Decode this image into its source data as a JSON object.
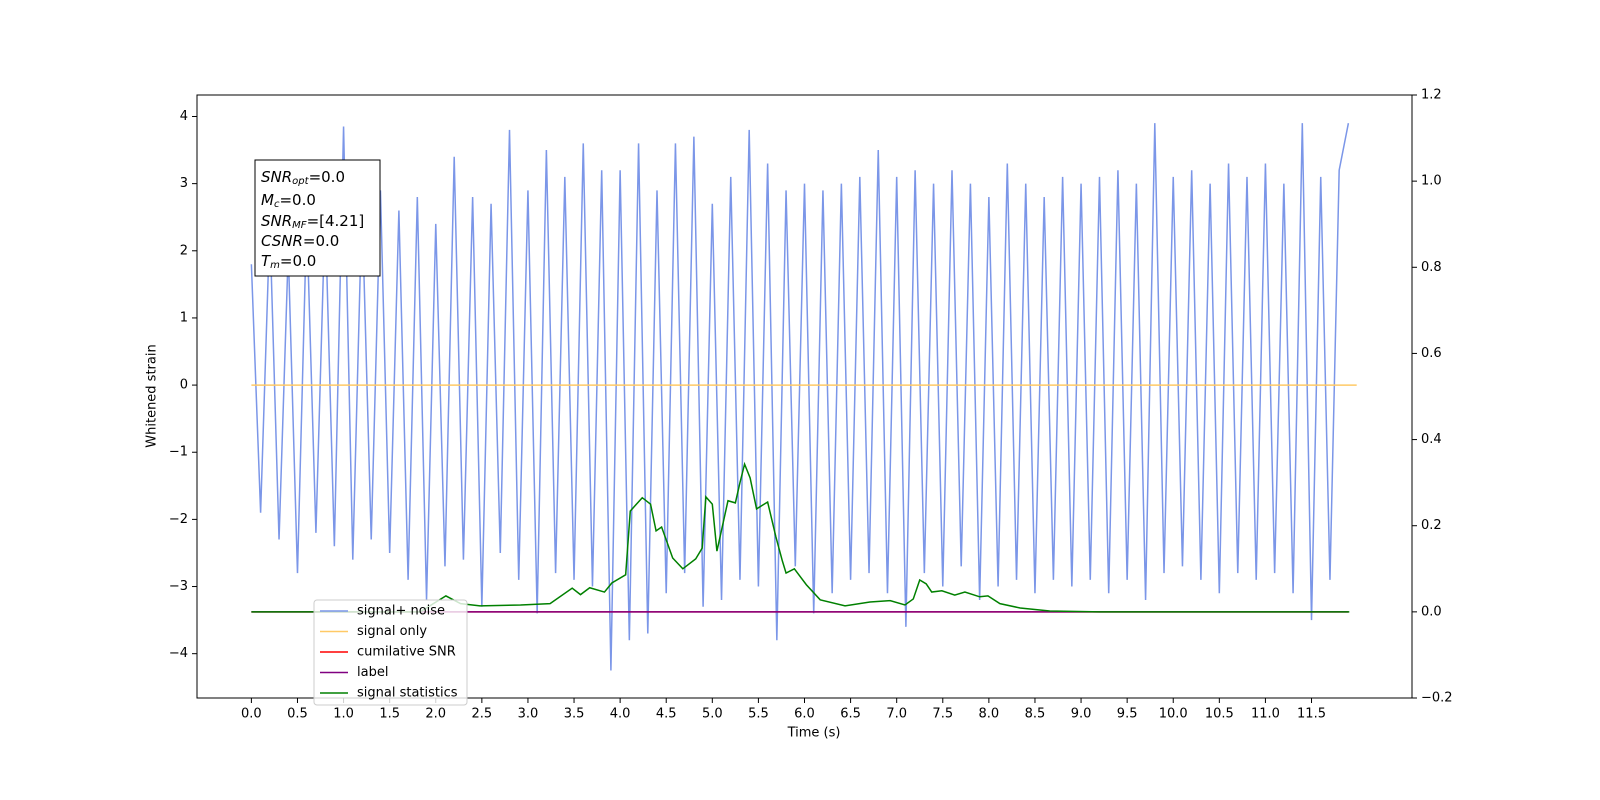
{
  "chart_data": {
    "type": "line",
    "xlabel": "Time (s)",
    "ylabel": "Whitened strain",
    "xlim": [
      -0.59,
      12.59
    ],
    "ylim": [
      -4.66,
      4.32
    ],
    "y2lim": [
      -0.2,
      1.2
    ],
    "xticks": [
      {
        "value": 0,
        "label": "0.0"
      },
      0.5,
      {
        "value": 1,
        "label": "1.0"
      },
      1.5,
      {
        "value": 2,
        "label": "2.0"
      },
      2.5,
      {
        "value": 3,
        "label": "3.0"
      },
      3.5,
      {
        "value": 4,
        "label": "4.0"
      },
      4.5,
      {
        "value": 5,
        "label": "5.0"
      },
      5.5,
      {
        "value": 6,
        "label": "6.0"
      },
      6.5,
      {
        "value": 7,
        "label": "7.0"
      },
      7.5,
      {
        "value": 8,
        "label": "8.0"
      },
      8.5,
      {
        "value": 9,
        "label": "9.0"
      },
      9.5,
      {
        "value": 10,
        "label": "10.0"
      },
      10.5,
      {
        "value": 11,
        "label": "11.0"
      },
      11.5
    ],
    "yticks": [
      {
        "value": -4,
        "label": "−4"
      },
      {
        "value": -3,
        "label": "−3"
      },
      {
        "value": -2,
        "label": "−2"
      },
      {
        "value": -1,
        "label": "−1"
      },
      0,
      1,
      2,
      3,
      4
    ],
    "y2ticks": [
      {
        "value": -0.2,
        "label": "−0.2"
      },
      {
        "value": 0,
        "label": "0.0"
      },
      0.2,
      0.4,
      0.6,
      0.8,
      {
        "value": 1,
        "label": "1.0"
      },
      1.2
    ],
    "annotations": [
      {
        "main": "SNR",
        "sub": "opt",
        "rest": "=0.0"
      },
      {
        "main": "M",
        "sub": "c",
        "rest": "=0.0"
      },
      {
        "main": "SNR",
        "sub": "MF",
        "rest": "=[4.21]"
      },
      {
        "main": "CSNR",
        "sub": null,
        "rest": "=0.0"
      },
      {
        "main": "T",
        "sub": "m",
        "rest": "=0.0"
      }
    ],
    "series": [
      {
        "name": "signal+ noise",
        "color": "#7b96e8",
        "axis": "y",
        "x": [
          0,
          0.1,
          0.2,
          0.3,
          0.4,
          0.5,
          0.6,
          0.7,
          0.8,
          0.9,
          1,
          1.1,
          1.2,
          1.3,
          1.4,
          1.5,
          1.6,
          1.7,
          1.8,
          1.9,
          2,
          2.1,
          2.2,
          2.3,
          2.4,
          2.5,
          2.6,
          2.7,
          2.8,
          2.9,
          3,
          3.1,
          3.2,
          3.3,
          3.4,
          3.5,
          3.6,
          3.7,
          3.8,
          3.9,
          4,
          4.1,
          4.2,
          4.3,
          4.4,
          4.5,
          4.6,
          4.7,
          4.8,
          4.9,
          5,
          5.1,
          5.2,
          5.3,
          5.4,
          5.5,
          5.6,
          5.7,
          5.8,
          5.9,
          6,
          6.1,
          6.2,
          6.3,
          6.4,
          6.5,
          6.6,
          6.7,
          6.8,
          6.9,
          7,
          7.1,
          7.2,
          7.3,
          7.4,
          7.5,
          7.6,
          7.7,
          7.8,
          7.9,
          8,
          8.1,
          8.2,
          8.3,
          8.4,
          8.5,
          8.6,
          8.7,
          8.8,
          8.9,
          9,
          9.1,
          9.2,
          9.3,
          9.4,
          9.5,
          9.6,
          9.7,
          9.8,
          9.9,
          10,
          10.1,
          10.2,
          10.3,
          10.4,
          10.5,
          10.6,
          10.7,
          10.8,
          10.9,
          11,
          11.1,
          11.2,
          11.3,
          11.4,
          11.5,
          11.6,
          11.7,
          11.8,
          11.9
        ],
        "values": [
          1.8,
          -1.9,
          2.4,
          -2.3,
          2.0,
          -2.8,
          2.5,
          -2.2,
          2.6,
          -2.4,
          3.85,
          -2.6,
          2.7,
          -2.3,
          2.9,
          -2.5,
          2.6,
          -2.9,
          2.8,
          -3.2,
          2.4,
          -2.7,
          3.4,
          -2.6,
          2.8,
          -3.3,
          2.7,
          -2.5,
          3.8,
          -2.9,
          2.9,
          -3.4,
          3.5,
          -2.8,
          3.1,
          -2.9,
          3.6,
          -3.0,
          3.2,
          -4.25,
          3.2,
          -3.8,
          3.6,
          -3.7,
          2.9,
          -3.1,
          3.6,
          -2.8,
          3.7,
          -3.3,
          2.7,
          -3.2,
          3.1,
          -2.9,
          3.8,
          -3.0,
          3.3,
          -3.8,
          2.9,
          -2.7,
          3.0,
          -3.4,
          2.9,
          -3.1,
          3.0,
          -2.9,
          3.1,
          -2.8,
          3.5,
          -3.1,
          3.1,
          -3.6,
          3.2,
          -2.8,
          3.0,
          -3.0,
          3.2,
          -2.7,
          3.0,
          -3.2,
          2.8,
          -3.0,
          3.3,
          -2.9,
          3.0,
          -3.1,
          2.8,
          -2.9,
          3.1,
          -3.0,
          3.0,
          -2.9,
          3.1,
          -3.1,
          3.2,
          -2.9,
          3.0,
          -3.2,
          3.9,
          -2.8,
          3.1,
          -2.7,
          3.2,
          -2.9,
          3.0,
          -3.1,
          3.3,
          -2.8,
          3.1,
          -2.9,
          3.3,
          -2.8,
          3.0,
          -3.1,
          3.9,
          -3.5,
          3.1,
          -2.9,
          3.2,
          3.9
        ]
      },
      {
        "name": "signal only",
        "color": "#ffc966",
        "axis": "y",
        "x": [
          0,
          11.99
        ],
        "values": [
          0,
          0
        ]
      },
      {
        "name": "cumilative SNR",
        "color": "#ff0000",
        "axis": "y2",
        "x": [
          0,
          11.9
        ],
        "values": [
          0,
          0
        ]
      },
      {
        "name": "label",
        "color": "#800080",
        "axis": "y2",
        "x": [
          0,
          11.9
        ],
        "values": [
          0,
          0
        ]
      },
      {
        "name": "signal statistics",
        "color": "#008000",
        "axis": "y2",
        "x": [
          0,
          1.83,
          2.11,
          2.27,
          2.48,
          2.92,
          3.24,
          3.48,
          3.57,
          3.67,
          3.83,
          3.91,
          4.06,
          4.11,
          4.24,
          4.33,
          4.39,
          4.45,
          4.57,
          4.68,
          4.82,
          4.89,
          4.93,
          5.0,
          5.05,
          5.17,
          5.25,
          5.3,
          5.35,
          5.41,
          5.48,
          5.6,
          5.69,
          5.76,
          5.8,
          5.89,
          6.02,
          6.17,
          6.44,
          6.71,
          6.93,
          7.09,
          7.18,
          7.25,
          7.32,
          7.38,
          7.49,
          7.63,
          7.74,
          7.9,
          7.99,
          8.12,
          8.34,
          8.66,
          9.2,
          11.91
        ],
        "values": [
          0,
          0,
          0.037,
          0.019,
          0.014,
          0.016,
          0.019,
          0.055,
          0.04,
          0.056,
          0.046,
          0.067,
          0.086,
          0.234,
          0.265,
          0.25,
          0.188,
          0.197,
          0.125,
          0.1,
          0.123,
          0.148,
          0.267,
          0.25,
          0.141,
          0.258,
          0.253,
          0.3,
          0.343,
          0.311,
          0.239,
          0.255,
          0.174,
          0.118,
          0.09,
          0.1,
          0.063,
          0.028,
          0.014,
          0.023,
          0.026,
          0.016,
          0.03,
          0.074,
          0.065,
          0.046,
          0.049,
          0.039,
          0.046,
          0.035,
          0.037,
          0.019,
          0.009,
          0.002,
          0,
          0
        ]
      }
    ]
  }
}
